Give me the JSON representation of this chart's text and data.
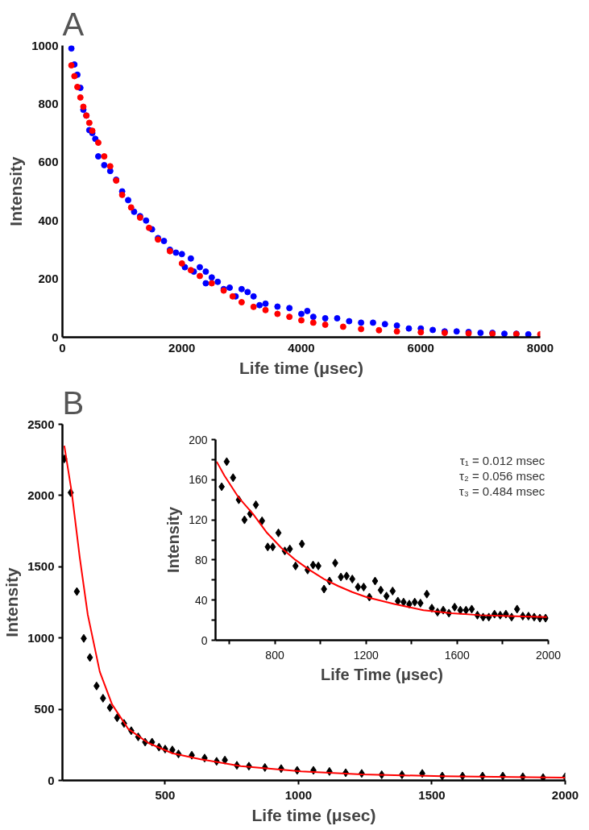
{
  "chart_data": [
    {
      "type": "scatter",
      "title": "A",
      "xlabel": "Life time (μsec)",
      "ylabel": "Intensity",
      "xlim": [
        0,
        8000
      ],
      "ylim": [
        0,
        1000
      ],
      "xticks": [
        0,
        2000,
        4000,
        6000,
        8000
      ],
      "yticks": [
        0,
        200,
        400,
        600,
        800,
        1000
      ],
      "grid": false,
      "series": [
        {
          "marker": "circle",
          "color": "#0000ff",
          "x": [
            150,
            200,
            250,
            300,
            350,
            400,
            450,
            500,
            550,
            600,
            700,
            800,
            900,
            1000,
            1100,
            1200,
            1300,
            1400,
            1500,
            1600,
            1700,
            1800,
            1900,
            2000,
            2050,
            2150,
            2200,
            2300,
            2400,
            2400,
            2500,
            2600,
            2700,
            2800,
            2900,
            3000,
            3100,
            3200,
            3300,
            3400,
            3600,
            3800,
            4000,
            4100,
            4200,
            4400,
            4600,
            4800,
            5000,
            5200,
            5400,
            5600,
            5800,
            6000,
            6200,
            6400,
            6600,
            6800,
            7000,
            7200,
            7400,
            7600,
            7800
          ],
          "values": [
            990,
            935,
            900,
            855,
            780,
            760,
            710,
            700,
            680,
            620,
            590,
            570,
            540,
            500,
            470,
            430,
            415,
            400,
            370,
            340,
            330,
            300,
            290,
            285,
            240,
            270,
            225,
            240,
            225,
            185,
            205,
            190,
            165,
            170,
            140,
            165,
            155,
            140,
            110,
            115,
            105,
            100,
            80,
            90,
            70,
            65,
            65,
            55,
            50,
            50,
            45,
            40,
            30,
            30,
            25,
            20,
            20,
            18,
            15,
            15,
            12,
            12,
            10
          ]
        },
        {
          "marker": "circle",
          "color": "#ff0000",
          "x": [
            150,
            200,
            250,
            300,
            350,
            400,
            450,
            500,
            600,
            700,
            800,
            900,
            1000,
            1150,
            1300,
            1450,
            1600,
            1800,
            2000,
            2150,
            2300,
            2500,
            2700,
            2850,
            3000,
            3200,
            3400,
            3600,
            3800,
            4000,
            4200,
            4400,
            4700,
            5000,
            5300,
            5600,
            6000,
            6400,
            6800,
            7200,
            7600,
            8000
          ],
          "values": [
            932,
            895,
            858,
            822,
            790,
            760,
            735,
            708,
            667,
            620,
            586,
            537,
            488,
            445,
            410,
            375,
            335,
            295,
            253,
            230,
            210,
            185,
            160,
            140,
            120,
            104,
            93,
            80,
            70,
            58,
            50,
            43,
            36,
            28,
            24,
            20,
            17,
            15,
            13,
            12,
            11,
            10
          ]
        }
      ]
    },
    {
      "type": "scatter",
      "title": "B",
      "xlabel": "Life time (μsec)",
      "ylabel": "Intensity",
      "xlim": [
        115,
        2000
      ],
      "ylim": [
        0,
        2500
      ],
      "xticks": [
        500,
        1000,
        1500,
        2000
      ],
      "yticks": [
        0,
        500,
        1000,
        1500,
        2000,
        2500
      ],
      "grid": false,
      "series": [
        {
          "marker": "diamond",
          "color": "#000000",
          "x": [
            122,
            146,
            169,
            195,
            218,
            243,
            267,
            293,
            320,
            346,
            373,
            399,
            425,
            451,
            477,
            500,
            527,
            550,
            600,
            648,
            693,
            724,
            769,
            814,
            874,
            935,
            995,
            1056,
            1116,
            1177,
            1237,
            1312,
            1388,
            1464,
            1539,
            1615,
            1690,
            1766,
            1841,
            1917,
            2000
          ],
          "values": [
            2257,
            2020,
            1326,
            997,
            863,
            663,
            577,
            511,
            440,
            400,
            349,
            306,
            269,
            269,
            234,
            220,
            214,
            186,
            177,
            157,
            134,
            143,
            106,
            100,
            91,
            83,
            71,
            71,
            63,
            54,
            49,
            40,
            40,
            49,
            31,
            31,
            31,
            31,
            26,
            20,
            26
          ]
        },
        {
          "type": "line",
          "color": "#ff0000",
          "x": [
            122,
            150,
            180,
            210,
            255,
            301,
            361,
            437,
            527,
            633,
            784,
            1010,
            1237,
            1539,
            2000
          ],
          "values": [
            2349,
            2020,
            1563,
            1163,
            763,
            534,
            363,
            263,
            191,
            149,
            100,
            63,
            43,
            29,
            20
          ]
        }
      ]
    },
    {
      "type": "scatter",
      "xlabel": "Life Time (μsec)",
      "ylabel": "Intensity",
      "xlim": [
        540,
        2000
      ],
      "ylim": [
        0,
        200
      ],
      "xticks": [
        {
          "value": 600,
          "label": null
        },
        800,
        {
          "value": 1000,
          "label": null
        },
        1200,
        {
          "value": 1400,
          "label": null
        },
        1600,
        {
          "value": 1800,
          "label": null
        },
        2000
      ],
      "yticks": [
        0,
        {
          "value": 20,
          "label": null
        },
        40,
        {
          "value": 60,
          "label": null
        },
        80,
        {
          "value": 100,
          "label": null
        },
        120,
        {
          "value": 140,
          "label": null
        },
        160,
        {
          "value": 180,
          "label": null
        },
        200
      ],
      "grid": false,
      "annotations": [
        "τ₁ = 0.012 msec",
        "τ₂ = 0.056 msec",
        "τ₃ = 0.484 msec"
      ],
      "series": [
        {
          "marker": "diamond",
          "color": "#000000",
          "x": [
            567,
            589,
            617,
            642,
            667,
            692,
            717,
            744,
            769,
            791,
            816,
            844,
            866,
            891,
            919,
            944,
            968,
            991,
            1016,
            1040,
            1065,
            1090,
            1115,
            1140,
            1165,
            1190,
            1215,
            1240,
            1265,
            1290,
            1317,
            1340,
            1365,
            1390,
            1414,
            1439,
            1467,
            1489,
            1514,
            1539,
            1564,
            1589,
            1614,
            1639,
            1664,
            1689,
            1714,
            1739,
            1764,
            1789,
            1814,
            1839,
            1863,
            1888,
            1913,
            1938,
            1963,
            1988
          ],
          "values": [
            153,
            178,
            162,
            140,
            120,
            126,
            135,
            119,
            93,
            93,
            107,
            89,
            91,
            74,
            96,
            70,
            75,
            74,
            51,
            59,
            77,
            63,
            64,
            61,
            53,
            53,
            43,
            59,
            50,
            44,
            49,
            39,
            38,
            36,
            38,
            37,
            46,
            32,
            28,
            30,
            27,
            33,
            30,
            30,
            31,
            25,
            23,
            23,
            26,
            25,
            26,
            23,
            31,
            24,
            24,
            23,
            22,
            22
          ]
        },
        {
          "type": "line",
          "color": "#ff0000",
          "x": [
            545,
            579,
            642,
            704,
            766,
            829,
            891,
            953,
            1016,
            1078,
            1140,
            1202,
            1327,
            1452,
            1576,
            1701,
            1826,
            1994
          ],
          "values": [
            178,
            164,
            142,
            126,
            107,
            92,
            80,
            70,
            61,
            54,
            48,
            43,
            36,
            30,
            27,
            25,
            24,
            23
          ]
        }
      ]
    }
  ]
}
